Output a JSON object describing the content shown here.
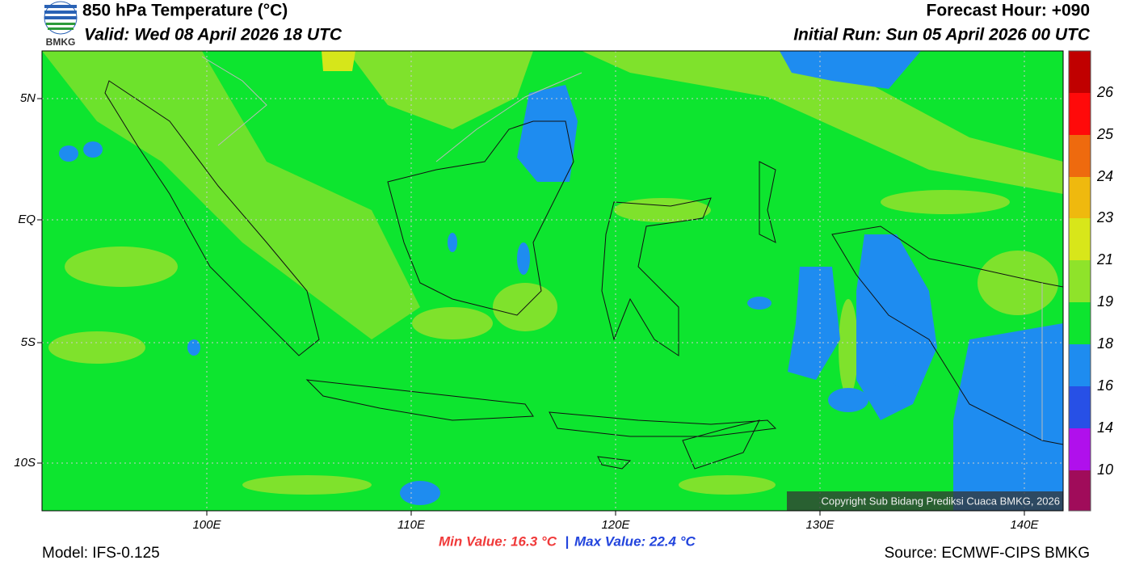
{
  "header": {
    "title": "850 hPa Temperature (°C)",
    "valid": "Valid: Wed 08 April 2026 18 UTC",
    "forecast_hour": "Forecast Hour: +090",
    "initial_run": "Initial Run: Sun 05 April 2026 00 UTC",
    "logo_text": "BMKG"
  },
  "map": {
    "lat_labels": [
      "5N",
      "EQ",
      "5S",
      "10S"
    ],
    "lon_labels": [
      "100E",
      "110E",
      "120E",
      "130E",
      "140E"
    ],
    "copyright": "Copyright Sub Bidang Prediksi Cuaca BMKG, 2026"
  },
  "colorbar": {
    "labels": [
      "26",
      "25",
      "24",
      "23",
      "21",
      "19",
      "18",
      "16",
      "14",
      "10"
    ]
  },
  "footer": {
    "model": "Model: IFS-0.125",
    "min_value": "Min Value: 16.3 °C",
    "separator": "|",
    "max_value": "Max Value: 22.4 °C",
    "source": "Source: ECMWF-CIPS BMKG"
  }
}
